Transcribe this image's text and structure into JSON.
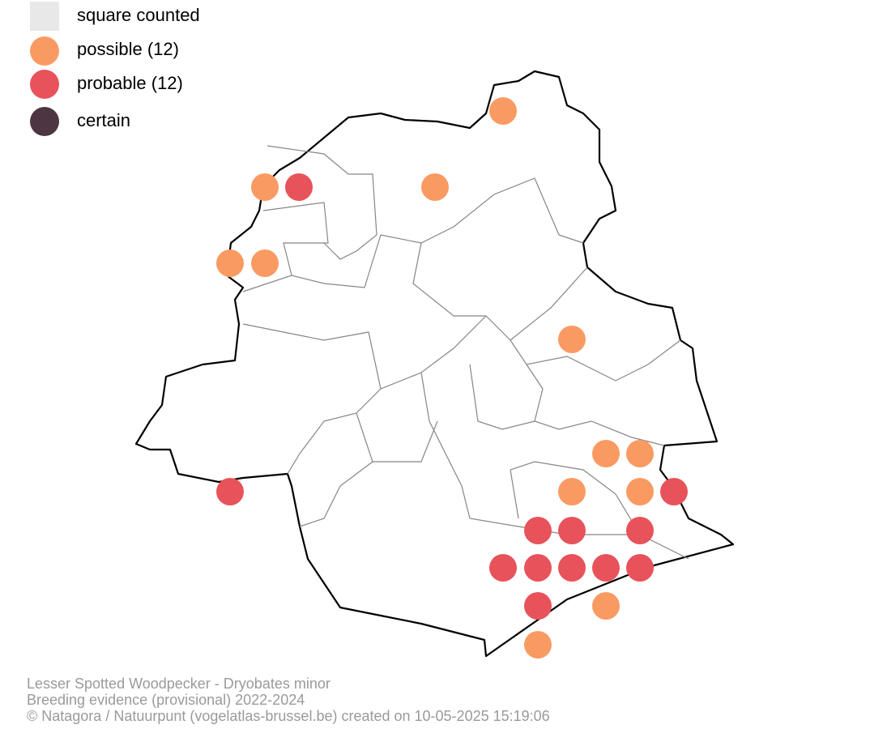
{
  "legend": {
    "items": [
      {
        "label": "square counted"
      },
      {
        "label": "possible (12)"
      },
      {
        "label": "probable (12)"
      },
      {
        "label": "certain"
      }
    ]
  },
  "footer": {
    "lines": [
      "Lesser Spotted Woodpecker - Dryobates minor",
      "Breeding evidence (provisional) 2022-2024",
      "© Natagora / Natuurpunt (vogelatlas-brussel.be) created on 10-05-2025 15:19:06"
    ]
  }
}
